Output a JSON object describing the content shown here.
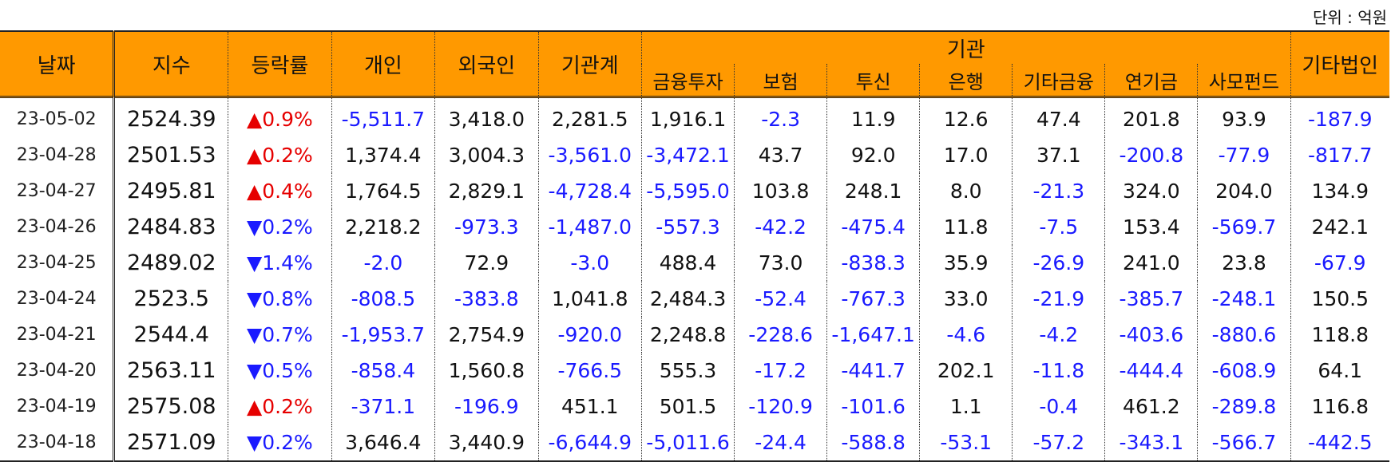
{
  "unit_label": "단위 : 억원",
  "headers": {
    "date": "날짜",
    "index": "지수",
    "rate": "등락률",
    "individual": "개인",
    "foreign": "외국인",
    "inst_total": "기관계",
    "inst_group": "기관",
    "inst_sub": [
      "금융투자",
      "보험",
      "투신",
      "은행",
      "기타금융",
      "연기금",
      "사모펀드"
    ],
    "other_corp": "기타법인"
  },
  "colors": {
    "header_bg": "#ff9900",
    "negative": "#1a1aff",
    "up_arrow": "#e60000",
    "down_arrow": "#1a1aff"
  },
  "rows": [
    {
      "date": "23-05-02",
      "index": "2524.39",
      "dir": "up",
      "rate": "▲0.9%",
      "vals": [
        "-5,511.7",
        "3,418.0",
        "2,281.5",
        "1,916.1",
        "-2.3",
        "11.9",
        "12.6",
        "47.4",
        "201.8",
        "93.9",
        "-187.9"
      ]
    },
    {
      "date": "23-04-28",
      "index": "2501.53",
      "dir": "up",
      "rate": "▲0.2%",
      "vals": [
        "1,374.4",
        "3,004.3",
        "-3,561.0",
        "-3,472.1",
        "43.7",
        "92.0",
        "17.0",
        "37.1",
        "-200.8",
        "-77.9",
        "-817.7"
      ]
    },
    {
      "date": "23-04-27",
      "index": "2495.81",
      "dir": "up",
      "rate": "▲0.4%",
      "vals": [
        "1,764.5",
        "2,829.1",
        "-4,728.4",
        "-5,595.0",
        "103.8",
        "248.1",
        "8.0",
        "-21.3",
        "324.0",
        "204.0",
        "134.9"
      ]
    },
    {
      "date": "23-04-26",
      "index": "2484.83",
      "dir": "down",
      "rate": "▼0.2%",
      "vals": [
        "2,218.2",
        "-973.3",
        "-1,487.0",
        "-557.3",
        "-42.2",
        "-475.4",
        "11.8",
        "-7.5",
        "153.4",
        "-569.7",
        "242.1"
      ]
    },
    {
      "date": "23-04-25",
      "index": "2489.02",
      "dir": "down",
      "rate": "▼1.4%",
      "vals": [
        "-2.0",
        "72.9",
        "-3.0",
        "488.4",
        "73.0",
        "-838.3",
        "35.9",
        "-26.9",
        "241.0",
        "23.8",
        "-67.9"
      ]
    },
    {
      "date": "23-04-24",
      "index": "2523.5",
      "dir": "down",
      "rate": "▼0.8%",
      "vals": [
        "-808.5",
        "-383.8",
        "1,041.8",
        "2,484.3",
        "-52.4",
        "-767.3",
        "33.0",
        "-21.9",
        "-385.7",
        "-248.1",
        "150.5"
      ]
    },
    {
      "date": "23-04-21",
      "index": "2544.4",
      "dir": "down",
      "rate": "▼0.7%",
      "vals": [
        "-1,953.7",
        "2,754.9",
        "-920.0",
        "2,248.8",
        "-228.6",
        "-1,647.1",
        "-4.6",
        "-4.2",
        "-403.6",
        "-880.6",
        "118.8"
      ]
    },
    {
      "date": "23-04-20",
      "index": "2563.11",
      "dir": "down",
      "rate": "▼0.5%",
      "vals": [
        "-858.4",
        "1,560.8",
        "-766.5",
        "555.3",
        "-17.2",
        "-441.7",
        "202.1",
        "-11.8",
        "-444.4",
        "-608.9",
        "64.1"
      ]
    },
    {
      "date": "23-04-19",
      "index": "2575.08",
      "dir": "up",
      "rate": "▲0.2%",
      "vals": [
        "-371.1",
        "-196.9",
        "451.1",
        "501.5",
        "-120.9",
        "-101.6",
        "1.1",
        "-0.4",
        "461.2",
        "-289.8",
        "116.8"
      ]
    },
    {
      "date": "23-04-18",
      "index": "2571.09",
      "dir": "down",
      "rate": "▼0.2%",
      "vals": [
        "3,646.4",
        "3,440.9",
        "-6,644.9",
        "-5,011.6",
        "-24.4",
        "-588.8",
        "-53.1",
        "-57.2",
        "-343.1",
        "-566.7",
        "-442.5"
      ]
    }
  ]
}
